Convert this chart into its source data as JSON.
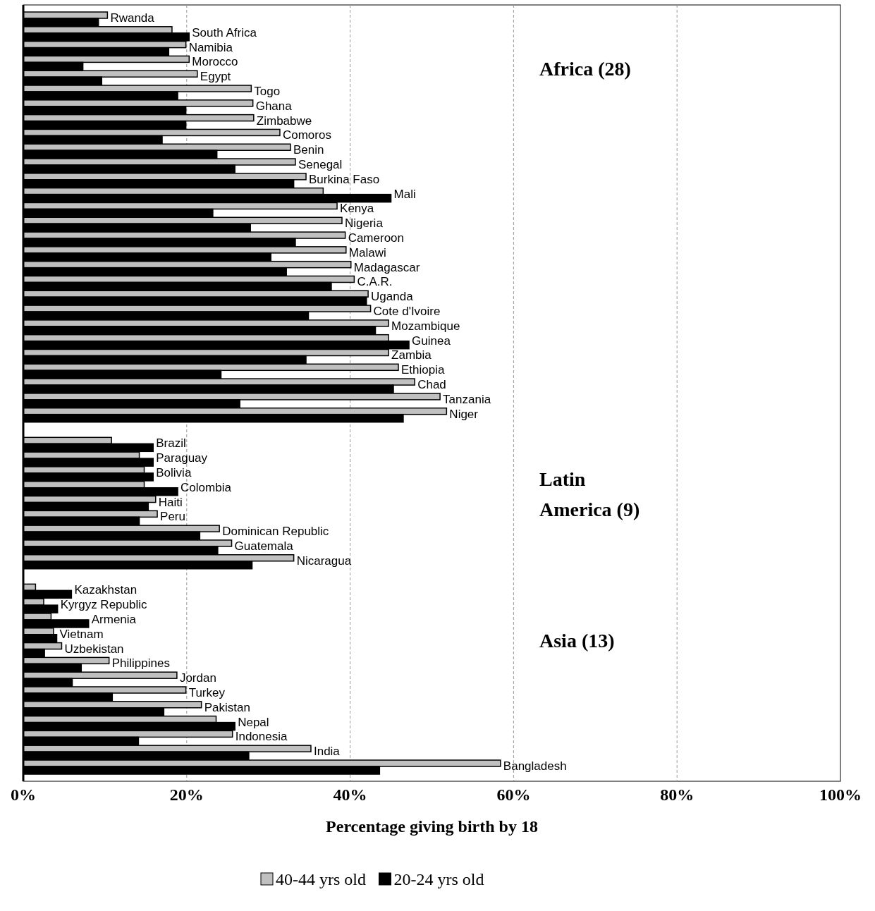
{
  "chart_data": {
    "type": "bar",
    "orientation": "horizontal",
    "xlabel": "Percentage giving birth by 18",
    "categories": [
      "Rwanda",
      "South Africa",
      "Namibia",
      "Morocco",
      "Egypt",
      "Togo",
      "Ghana",
      "Zimbabwe",
      "Comoros",
      "Benin",
      "Senegal",
      "Burkina Faso",
      "Mali",
      "Kenya",
      "Nigeria",
      "Cameroon",
      "Malawi",
      "Madagascar",
      "C.A.R.",
      "Uganda",
      "Cote d'Ivoire",
      "Mozambique",
      "Guinea",
      "Zambia",
      "Ethiopia",
      "Chad",
      "Tanzania",
      "Niger",
      null,
      "Brazil",
      "Paraguay",
      "Bolivia",
      "Colombia",
      "Haiti",
      "Peru",
      "Dominican Republic",
      "Guatemala",
      "Nicaragua",
      null,
      "Kazakhstan",
      "Kyrgyz Republic",
      "Armenia",
      "Vietnam",
      "Uzbekistan",
      "Philippines",
      "Jordan",
      "Turkey",
      "Pakistan",
      "Nepal",
      "Indonesia",
      "India",
      "Bangladesh"
    ],
    "series": [
      {
        "name": "40-44 yrs old",
        "color": "#c0c0c0",
        "values": [
          10.3,
          18.2,
          19.9,
          20.3,
          21.3,
          27.9,
          28.1,
          28.2,
          31.4,
          32.7,
          33.3,
          34.6,
          36.7,
          38.4,
          39.0,
          39.4,
          39.5,
          40.1,
          40.5,
          42.2,
          42.5,
          44.7,
          44.7,
          44.7,
          45.9,
          47.9,
          51.0,
          51.8,
          null,
          10.8,
          14.2,
          14.8,
          14.8,
          16.2,
          16.4,
          24.0,
          25.5,
          33.1,
          null,
          1.5,
          2.5,
          3.4,
          3.7,
          4.7,
          10.5,
          18.8,
          19.9,
          21.8,
          23.6,
          25.6,
          35.2,
          58.4
        ]
      },
      {
        "name": "20-24 yrs old",
        "color": "#000000",
        "values": [
          9.2,
          20.3,
          17.8,
          7.3,
          9.6,
          18.9,
          19.9,
          19.9,
          17.0,
          23.7,
          25.9,
          33.1,
          45.0,
          23.2,
          27.8,
          33.3,
          30.3,
          32.2,
          37.7,
          42.0,
          34.9,
          43.1,
          47.2,
          34.6,
          24.2,
          45.3,
          26.5,
          46.5,
          null,
          15.9,
          15.9,
          15.9,
          18.9,
          15.3,
          14.2,
          21.6,
          23.8,
          28.0,
          null,
          5.9,
          4.2,
          8.0,
          4.1,
          2.6,
          7.1,
          6.0,
          10.9,
          17.2,
          25.9,
          14.1,
          27.6,
          43.6
        ]
      }
    ],
    "xlim": [
      0,
      100
    ],
    "xticks": [
      {
        "value": 0,
        "label": "0%"
      },
      {
        "value": 20,
        "label": "20%"
      },
      {
        "value": 40,
        "label": "40%"
      },
      {
        "value": 60,
        "label": "60%"
      },
      {
        "value": 80,
        "label": "80%"
      },
      {
        "value": 100,
        "label": "100%"
      }
    ],
    "grid": "x",
    "legend": "bottom",
    "annotations": [
      "Africa (28)",
      "Latin America (9)",
      "Asia (13)"
    ]
  }
}
